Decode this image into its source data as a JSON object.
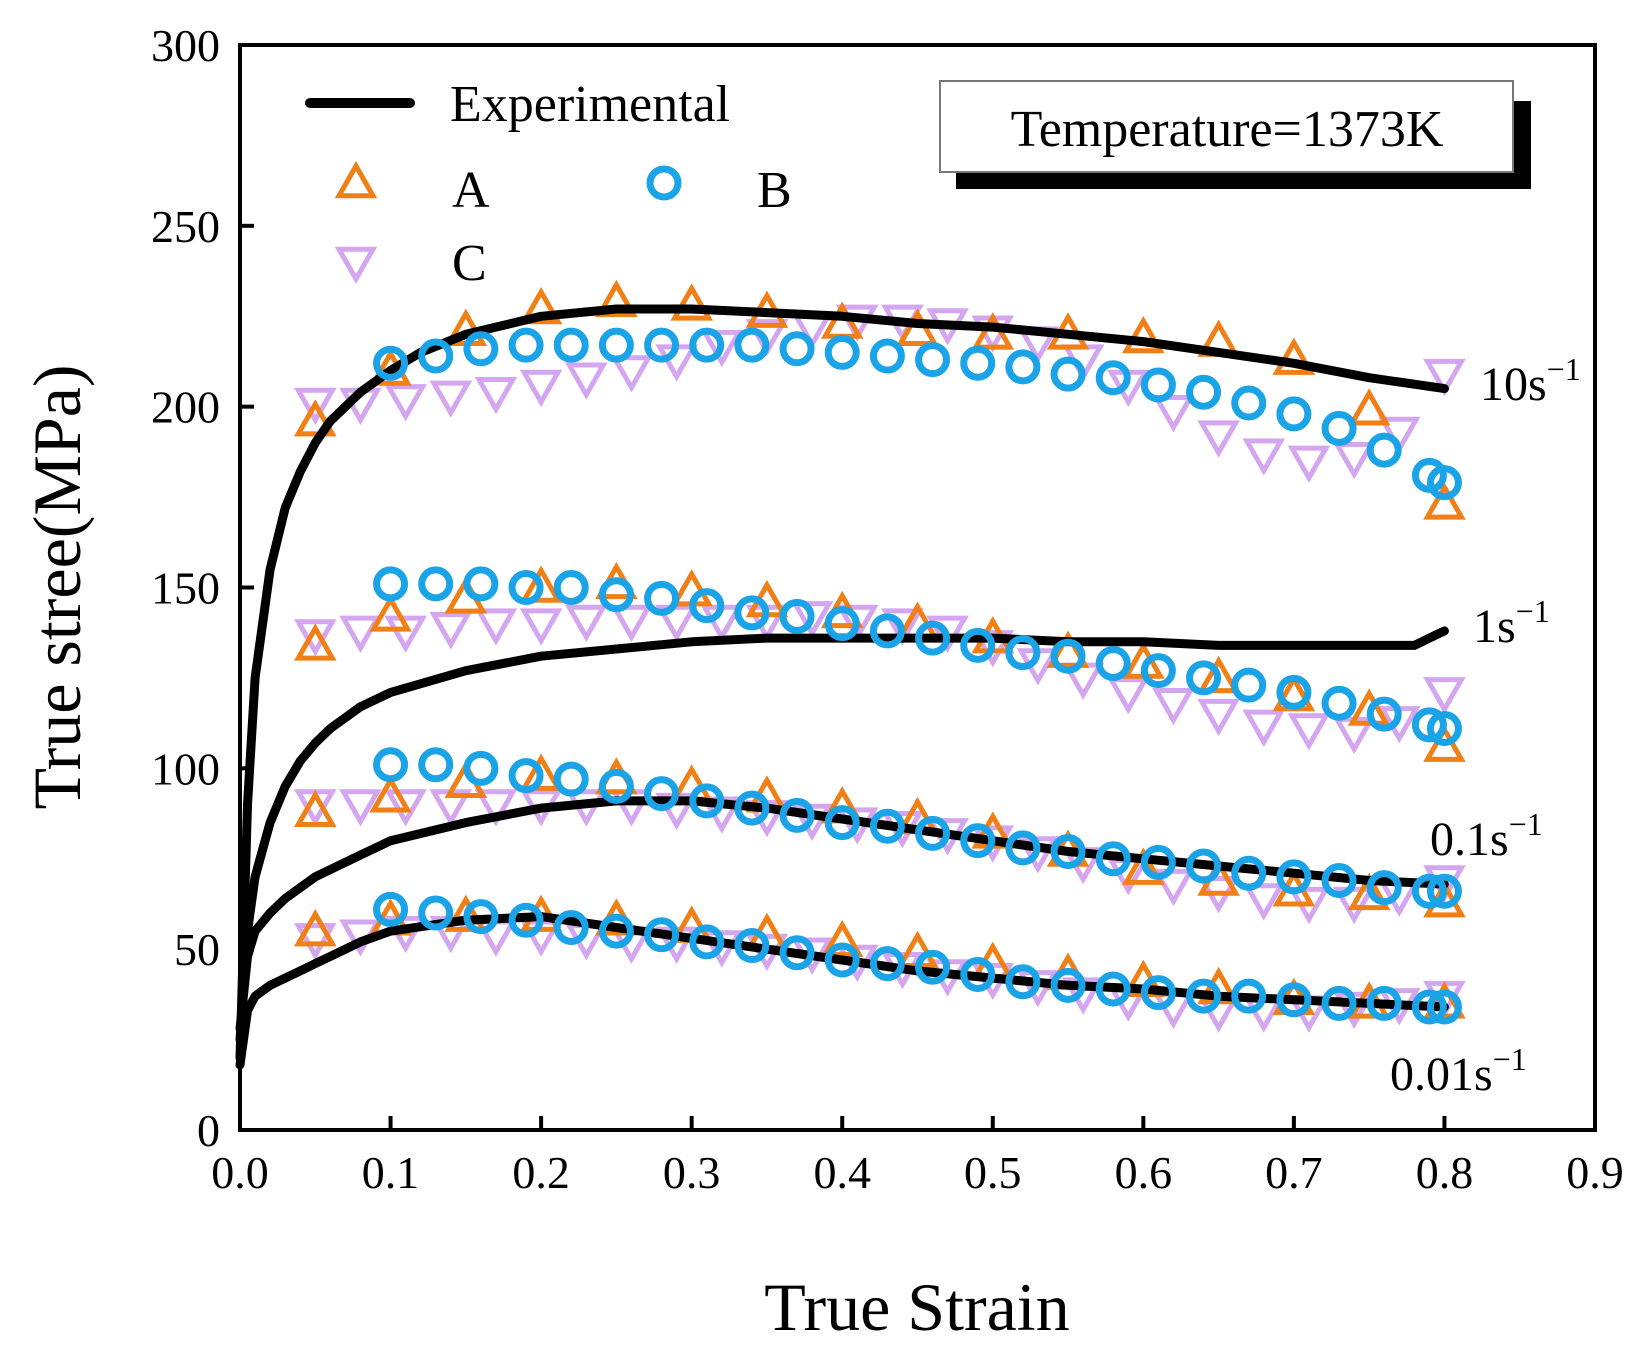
{
  "chart_data": {
    "type": "scatter",
    "title": "",
    "xlabel": "True Strain",
    "ylabel": "True stree(MPa)",
    "xlim": [
      0.0,
      0.9
    ],
    "ylim": [
      0,
      300
    ],
    "xticks": [
      "0.0",
      "0.1",
      "0.2",
      "0.3",
      "0.4",
      "0.5",
      "0.6",
      "0.7",
      "0.8",
      "0.9"
    ],
    "yticks": [
      "0",
      "50",
      "100",
      "150",
      "200",
      "250",
      "300"
    ],
    "annotation": "Temperature=1373K",
    "legend": {
      "experimental": "Experimental",
      "a": "A",
      "b": "B",
      "c": "C"
    },
    "colors": {
      "experimental": "#000000",
      "a": "#f07f16",
      "b": "#1aa3e6",
      "c": "#d5a6f0"
    },
    "strain_rates": [
      {
        "label": "10s",
        "exponent": "−1",
        "experimental": {
          "x": [
            0.0,
            0.005,
            0.01,
            0.02,
            0.03,
            0.04,
            0.05,
            0.06,
            0.08,
            0.1,
            0.12,
            0.15,
            0.18,
            0.2,
            0.25,
            0.3,
            0.35,
            0.4,
            0.45,
            0.5,
            0.55,
            0.6,
            0.65,
            0.7,
            0.75,
            0.8
          ],
          "y": [
            20,
            90,
            125,
            155,
            172,
            182,
            190,
            196,
            204,
            210,
            215,
            220,
            223,
            225,
            227,
            227,
            226,
            225,
            223,
            222,
            220,
            218,
            215,
            212,
            208,
            205
          ]
        },
        "A": {
          "x": [
            0.05,
            0.1,
            0.15,
            0.2,
            0.25,
            0.3,
            0.35,
            0.4,
            0.45,
            0.5,
            0.55,
            0.6,
            0.65,
            0.7,
            0.75,
            0.8
          ],
          "y": [
            196,
            210,
            221,
            227,
            229,
            228,
            226,
            223,
            221,
            220,
            220,
            219,
            218,
            213,
            199,
            173
          ]
        },
        "B": {
          "x": [
            0.1,
            0.13,
            0.16,
            0.19,
            0.22,
            0.25,
            0.28,
            0.31,
            0.34,
            0.37,
            0.4,
            0.43,
            0.46,
            0.49,
            0.52,
            0.55,
            0.58,
            0.61,
            0.64,
            0.67,
            0.7,
            0.73,
            0.76,
            0.79,
            0.8
          ],
          "y": [
            212,
            214,
            216,
            217,
            217,
            217,
            217,
            217,
            217,
            216,
            215,
            214,
            213,
            212,
            211,
            209,
            208,
            206,
            204,
            201,
            198,
            194,
            188,
            181,
            179
          ]
        },
        "C": {
          "x": [
            0.05,
            0.08,
            0.11,
            0.14,
            0.17,
            0.2,
            0.23,
            0.26,
            0.29,
            0.32,
            0.35,
            0.38,
            0.41,
            0.44,
            0.47,
            0.5,
            0.53,
            0.56,
            0.59,
            0.62,
            0.65,
            0.68,
            0.71,
            0.74,
            0.77,
            0.8
          ],
          "y": [
            201,
            201,
            202,
            203,
            204,
            206,
            208,
            210,
            213,
            217,
            220,
            222,
            224,
            224,
            223,
            221,
            218,
            213,
            206,
            199,
            192,
            187,
            185,
            186,
            193,
            209
          ]
        }
      },
      {
        "label": "1s",
        "exponent": "−1",
        "experimental": {
          "x": [
            0.0,
            0.005,
            0.01,
            0.02,
            0.03,
            0.04,
            0.05,
            0.06,
            0.08,
            0.1,
            0.15,
            0.2,
            0.25,
            0.3,
            0.35,
            0.4,
            0.45,
            0.5,
            0.55,
            0.6,
            0.65,
            0.7,
            0.75,
            0.78,
            0.79,
            0.8
          ],
          "y": [
            25,
            55,
            70,
            85,
            95,
            102,
            107,
            111,
            117,
            121,
            127,
            131,
            133,
            135,
            136,
            136,
            136,
            136,
            135,
            135,
            134,
            134,
            134,
            134,
            136,
            138
          ]
        },
        "A": {
          "x": [
            0.05,
            0.1,
            0.15,
            0.2,
            0.25,
            0.3,
            0.35,
            0.4,
            0.45,
            0.5,
            0.55,
            0.6,
            0.65,
            0.7,
            0.75,
            0.8
          ],
          "y": [
            134,
            142,
            147,
            150,
            151,
            149,
            146,
            143,
            140,
            136,
            132,
            129,
            125,
            120,
            116,
            106
          ]
        },
        "B": {
          "x": [
            0.1,
            0.13,
            0.16,
            0.19,
            0.22,
            0.25,
            0.28,
            0.31,
            0.34,
            0.37,
            0.4,
            0.43,
            0.46,
            0.49,
            0.52,
            0.55,
            0.58,
            0.61,
            0.64,
            0.67,
            0.7,
            0.73,
            0.76,
            0.79,
            0.8
          ],
          "y": [
            151,
            151,
            151,
            150,
            150,
            148,
            147,
            145,
            143,
            142,
            140,
            138,
            136,
            134,
            132,
            131,
            129,
            127,
            125,
            123,
            121,
            118,
            115,
            112,
            111
          ]
        },
        "C": {
          "x": [
            0.05,
            0.08,
            0.11,
            0.14,
            0.17,
            0.2,
            0.23,
            0.26,
            0.29,
            0.32,
            0.35,
            0.38,
            0.41,
            0.44,
            0.47,
            0.5,
            0.53,
            0.56,
            0.59,
            0.62,
            0.65,
            0.68,
            0.71,
            0.74,
            0.77,
            0.8
          ],
          "y": [
            137,
            138,
            138,
            139,
            140,
            140,
            141,
            141,
            141,
            141,
            141,
            142,
            141,
            140,
            138,
            134,
            129,
            125,
            121,
            118,
            115,
            112,
            111,
            110,
            113,
            121
          ]
        }
      },
      {
        "label": "0.1s",
        "exponent": "−1",
        "experimental": {
          "x": [
            0.0,
            0.005,
            0.01,
            0.02,
            0.03,
            0.04,
            0.05,
            0.06,
            0.08,
            0.1,
            0.15,
            0.2,
            0.25,
            0.3,
            0.35,
            0.4,
            0.45,
            0.5,
            0.55,
            0.6,
            0.65,
            0.7,
            0.75,
            0.8
          ],
          "y": [
            28,
            48,
            55,
            60,
            64,
            67,
            70,
            72,
            76,
            80,
            85,
            89,
            91,
            91,
            89,
            86,
            83,
            80,
            77,
            75,
            73,
            71,
            69,
            68
          ]
        },
        "A": {
          "x": [
            0.05,
            0.1,
            0.15,
            0.2,
            0.25,
            0.3,
            0.35,
            0.4,
            0.45,
            0.5,
            0.55,
            0.6,
            0.65,
            0.7,
            0.75,
            0.8
          ],
          "y": [
            88,
            92,
            96,
            98,
            97,
            95,
            92,
            89,
            86,
            82,
            77,
            72,
            69,
            66,
            65,
            63
          ]
        },
        "B": {
          "x": [
            0.1,
            0.13,
            0.16,
            0.19,
            0.22,
            0.25,
            0.28,
            0.31,
            0.34,
            0.37,
            0.4,
            0.43,
            0.46,
            0.49,
            0.52,
            0.55,
            0.58,
            0.61,
            0.64,
            0.67,
            0.7,
            0.73,
            0.76,
            0.79,
            0.8
          ],
          "y": [
            101,
            101,
            100,
            98,
            97,
            95,
            93,
            91,
            89,
            87,
            85,
            84,
            82,
            80,
            78,
            77,
            75,
            74,
            73,
            71,
            70,
            69,
            67,
            66,
            66
          ]
        },
        "C": {
          "x": [
            0.05,
            0.08,
            0.11,
            0.14,
            0.17,
            0.2,
            0.23,
            0.26,
            0.29,
            0.32,
            0.35,
            0.38,
            0.41,
            0.44,
            0.47,
            0.5,
            0.53,
            0.56,
            0.59,
            0.62,
            0.65,
            0.68,
            0.71,
            0.74,
            0.77,
            0.8
          ],
          "y": [
            90,
            90,
            90,
            90,
            90,
            90,
            90,
            90,
            89,
            88,
            87,
            86,
            85,
            84,
            82,
            80,
            77,
            74,
            71,
            68,
            66,
            64,
            63,
            63,
            65,
            69
          ]
        }
      },
      {
        "label": "0.01s",
        "exponent": "−1",
        "experimental": {
          "x": [
            0.0,
            0.005,
            0.01,
            0.02,
            0.03,
            0.04,
            0.05,
            0.06,
            0.08,
            0.1,
            0.15,
            0.2,
            0.25,
            0.3,
            0.35,
            0.4,
            0.45,
            0.5,
            0.55,
            0.6,
            0.65,
            0.7,
            0.75,
            0.8
          ],
          "y": [
            18,
            33,
            37,
            40,
            42,
            44,
            46,
            48,
            52,
            55,
            58,
            59,
            56,
            53,
            50,
            47,
            44,
            42,
            40,
            39,
            37,
            36,
            35,
            34
          ]
        },
        "A": {
          "x": [
            0.05,
            0.1,
            0.15,
            0.2,
            0.25,
            0.3,
            0.35,
            0.4,
            0.45,
            0.5,
            0.55,
            0.6,
            0.65,
            0.7,
            0.75,
            0.8
          ],
          "y": [
            55,
            58,
            59,
            59,
            58,
            56,
            54,
            52,
            49,
            46,
            43,
            41,
            39,
            36,
            35,
            35
          ]
        },
        "B": {
          "x": [
            0.1,
            0.13,
            0.16,
            0.19,
            0.22,
            0.25,
            0.28,
            0.31,
            0.34,
            0.37,
            0.4,
            0.43,
            0.46,
            0.49,
            0.52,
            0.55,
            0.58,
            0.61,
            0.64,
            0.67,
            0.7,
            0.73,
            0.76,
            0.79,
            0.8
          ],
          "y": [
            61,
            60,
            59,
            58,
            56,
            55,
            54,
            52,
            51,
            49,
            47,
            46,
            45,
            43,
            41,
            40,
            39,
            38,
            37,
            37,
            36,
            35,
            35,
            34,
            34
          ]
        },
        "C": {
          "x": [
            0.05,
            0.08,
            0.11,
            0.14,
            0.17,
            0.2,
            0.23,
            0.26,
            0.29,
            0.32,
            0.35,
            0.38,
            0.41,
            0.44,
            0.47,
            0.5,
            0.53,
            0.56,
            0.59,
            0.62,
            0.65,
            0.68,
            0.71,
            0.74,
            0.77,
            0.8
          ],
          "y": [
            53,
            54,
            55,
            55,
            54,
            54,
            53,
            52,
            52,
            51,
            50,
            49,
            47,
            45,
            43,
            42,
            40,
            38,
            36,
            34,
            33,
            33,
            33,
            34,
            35,
            37
          ]
        }
      }
    ]
  }
}
